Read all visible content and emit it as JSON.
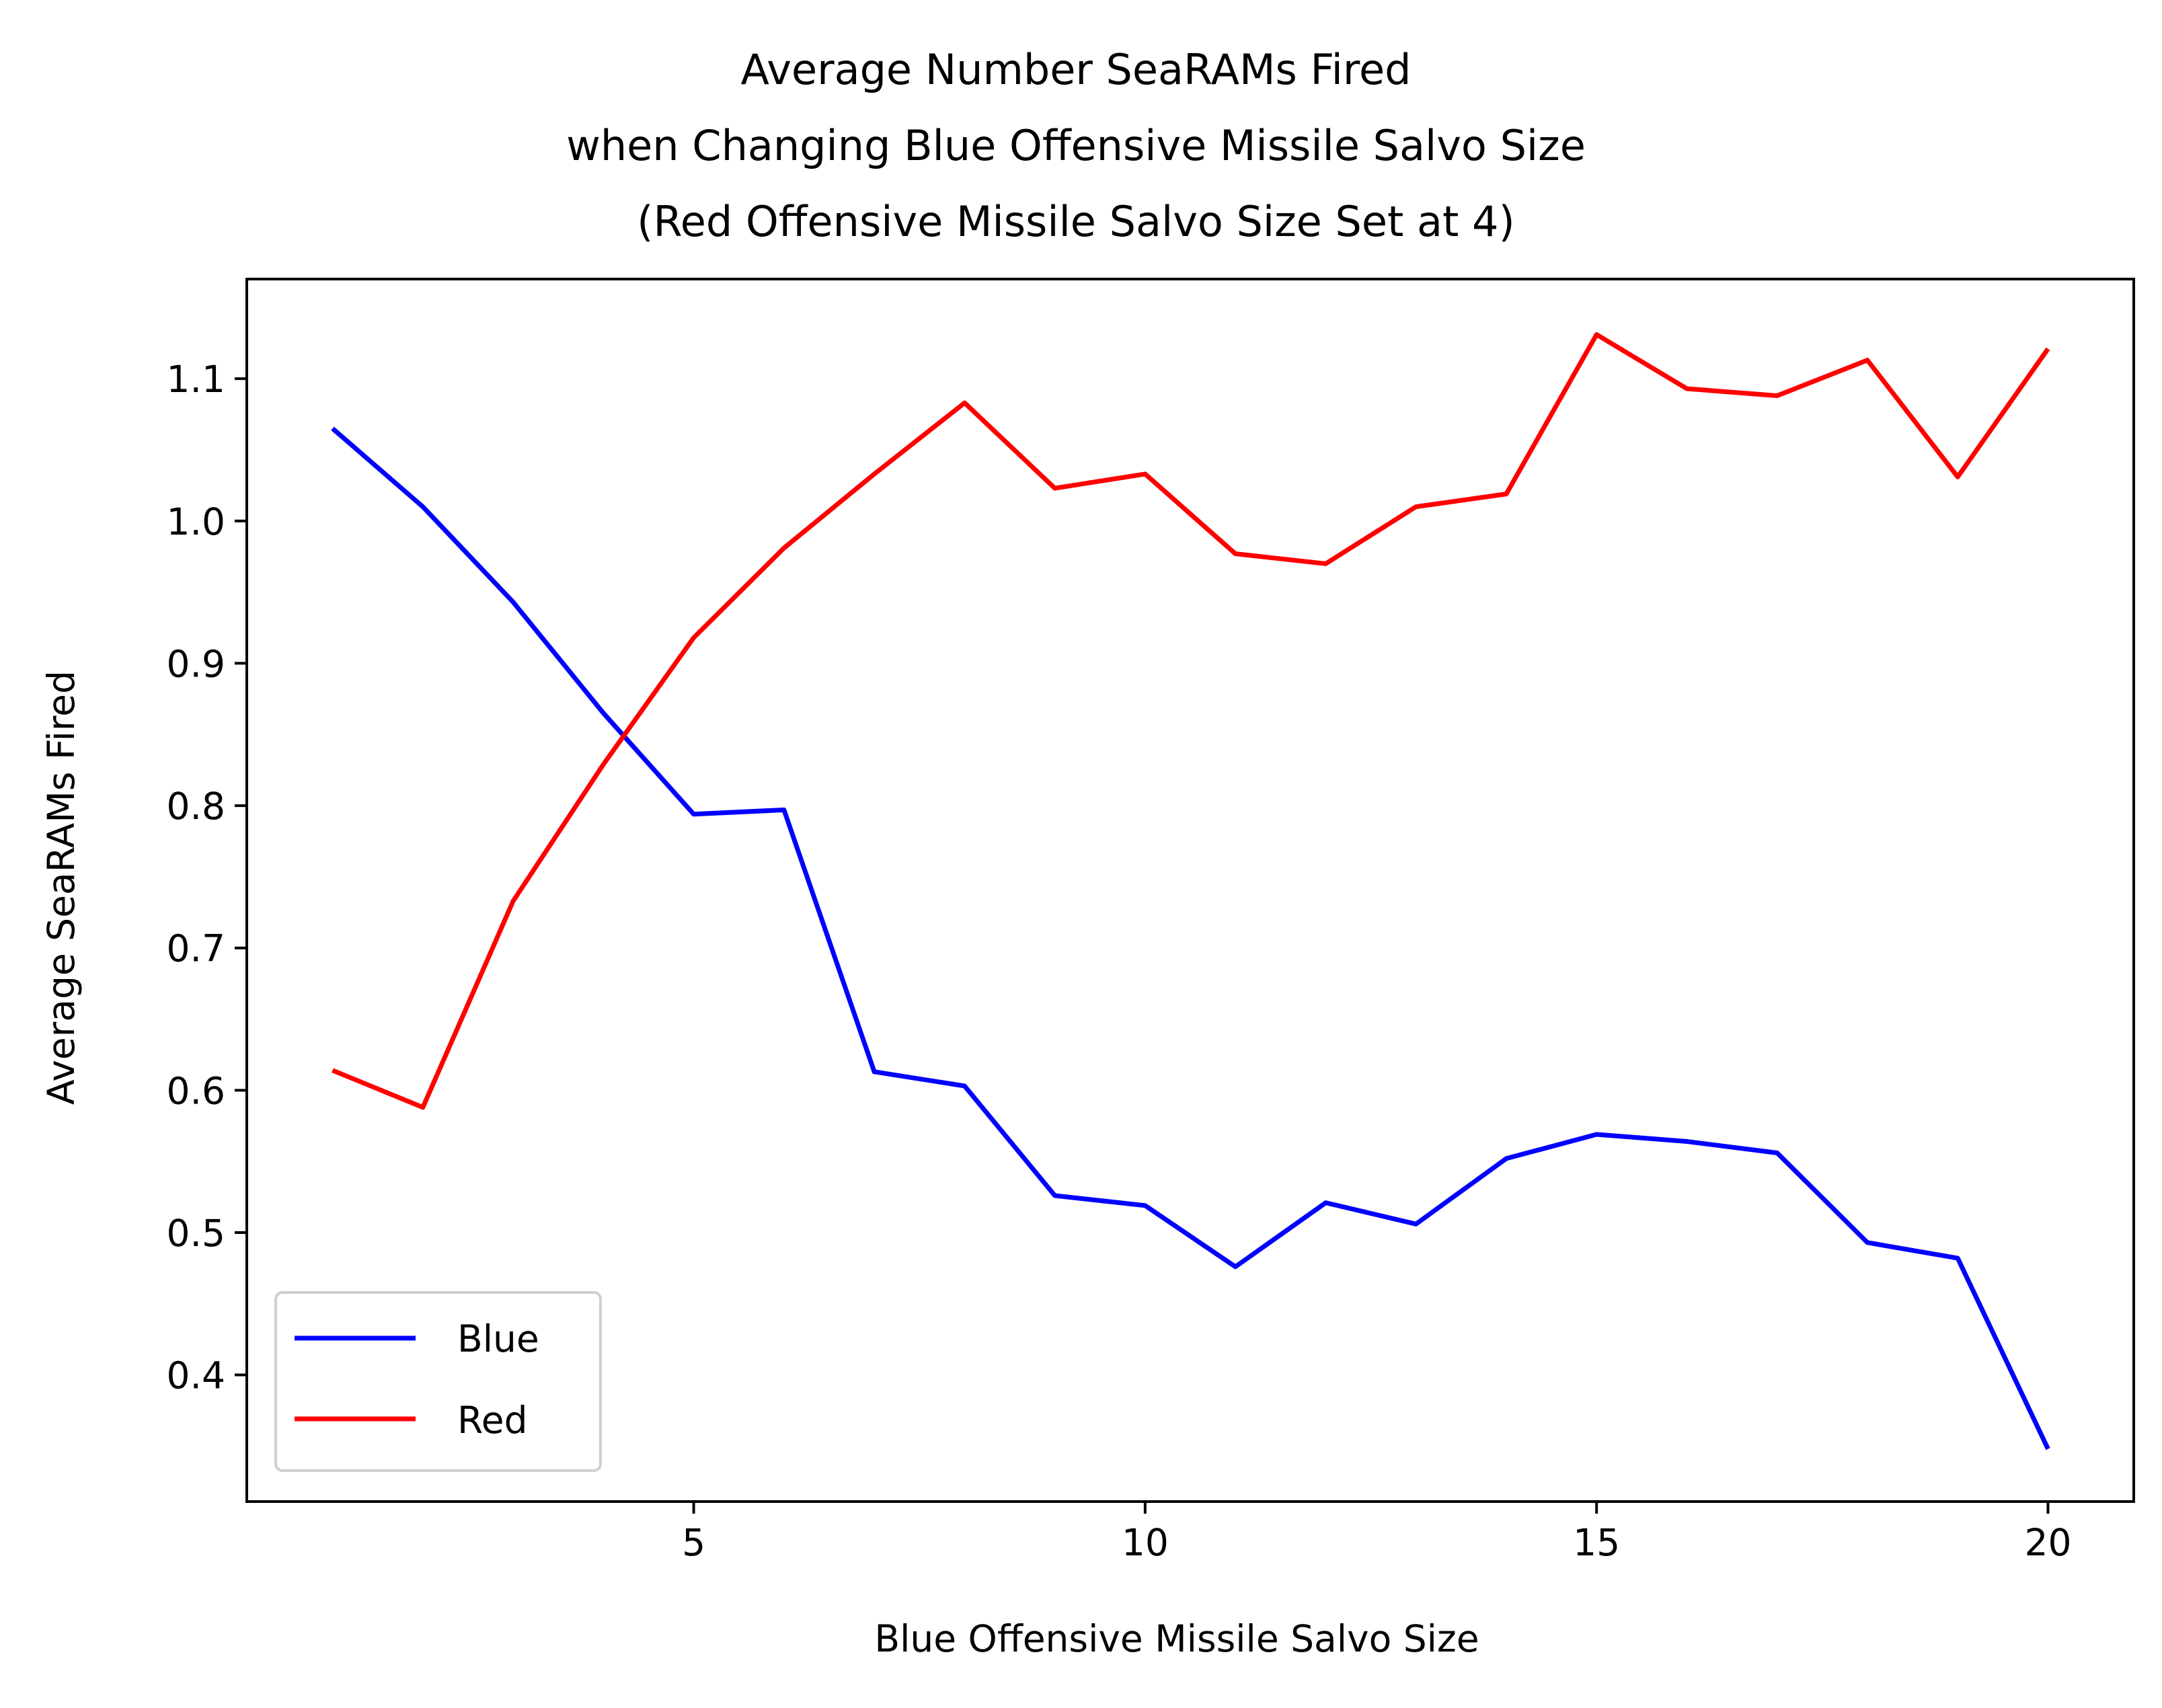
{
  "chart_data": {
    "type": "line",
    "title": [
      "Average Number SeaRAMs Fired",
      "when Changing Blue Offensive Missile Salvo Size",
      "(Red Offensive Missile Salvo Size Set at 4)"
    ],
    "xlabel": "Blue Offensive Missile Salvo Size",
    "ylabel": "Average SeaRAMs Fired",
    "xlim": [
      0.05,
      20.95
    ],
    "ylim": [
      0.311,
      1.17
    ],
    "xticks": [
      5,
      10,
      15,
      20
    ],
    "xtick_labels": [
      "5",
      "10",
      "15",
      "20"
    ],
    "yticks": [
      0.4,
      0.5,
      0.6,
      0.7,
      0.8,
      0.9,
      1.0,
      1.1
    ],
    "ytick_labels": [
      "0.4",
      "0.5",
      "0.6",
      "0.7",
      "0.8",
      "0.9",
      "1.0",
      "1.1"
    ],
    "grid": false,
    "legend": {
      "position": "lower-left"
    },
    "x": [
      1,
      2,
      3,
      4,
      5,
      6,
      7,
      8,
      9,
      10,
      11,
      12,
      13,
      14,
      15,
      16,
      17,
      18,
      19,
      20
    ],
    "series": [
      {
        "name": "Blue",
        "color": "#0000ff",
        "values": [
          1.065,
          1.01,
          0.943,
          0.865,
          0.794,
          0.797,
          0.613,
          0.603,
          0.526,
          0.519,
          0.476,
          0.521,
          0.506,
          0.552,
          0.569,
          0.564,
          0.556,
          0.493,
          0.482,
          0.348
        ]
      },
      {
        "name": "Red",
        "color": "#ff0000",
        "values": [
          0.614,
          0.588,
          0.733,
          0.829,
          0.918,
          0.981,
          1.033,
          1.083,
          1.023,
          1.033,
          0.977,
          0.97,
          1.01,
          1.019,
          1.131,
          1.093,
          1.088,
          1.113,
          1.031,
          1.121
        ]
      }
    ]
  }
}
